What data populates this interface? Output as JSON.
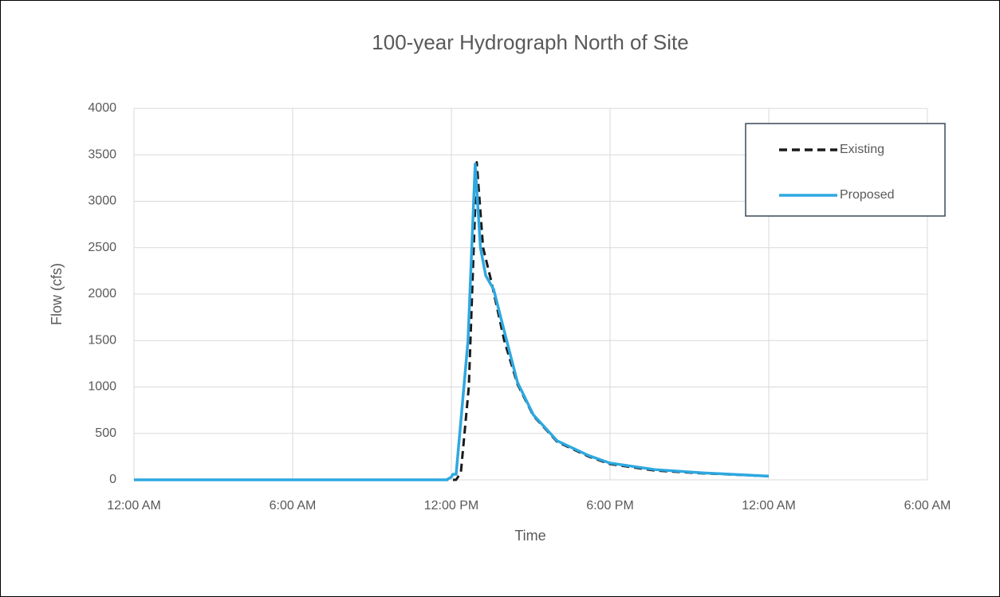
{
  "chart_data": {
    "type": "line",
    "title": "100-year Hydrograph North of Site",
    "x_label": "Time",
    "y_label": "Flow (cfs)",
    "xlim": [
      0,
      30
    ],
    "xticks": [
      {
        "value": 0,
        "label": "12:00 AM"
      },
      {
        "value": 6,
        "label": "6:00 AM"
      },
      {
        "value": 12,
        "label": "12:00 PM"
      },
      {
        "value": 18,
        "label": "6:00 PM"
      },
      {
        "value": 24,
        "label": "12:00 AM"
      },
      {
        "value": 30,
        "label": "6:00 AM"
      }
    ],
    "ylim": [
      0,
      4000
    ],
    "yticks": [
      0,
      500,
      1000,
      1500,
      2000,
      2500,
      3000,
      3500,
      4000
    ],
    "grid": true,
    "legend": "upper right",
    "series": [
      {
        "name": "Existing",
        "color": "#1a1a1a",
        "dash": true,
        "x": [
          0,
          6,
          12,
          12.18,
          12.36,
          12.66,
          12.96,
          13.2,
          13.5,
          14.0,
          14.5,
          15.1,
          16.0,
          17.2,
          18.0,
          19.7,
          21.5,
          24.0
        ],
        "values": [
          0,
          0,
          0,
          0,
          80,
          1000,
          3420,
          2500,
          2150,
          1500,
          1030,
          690,
          410,
          250,
          170,
          100,
          70,
          40
        ]
      },
      {
        "name": "Proposed",
        "color": "#2ea8e0",
        "dash": false,
        "x": [
          0,
          6,
          11.82,
          12.0,
          12.06,
          12.18,
          12.63,
          12.9,
          13.1,
          13.3,
          13.6,
          14.0,
          14.5,
          15.1,
          16.0,
          17.2,
          18.0,
          19.7,
          21.5,
          24.0
        ],
        "values": [
          0,
          0,
          0,
          30,
          60,
          60,
          1500,
          3400,
          2500,
          2200,
          2050,
          1600,
          1050,
          700,
          420,
          260,
          180,
          110,
          75,
          40
        ]
      }
    ]
  }
}
